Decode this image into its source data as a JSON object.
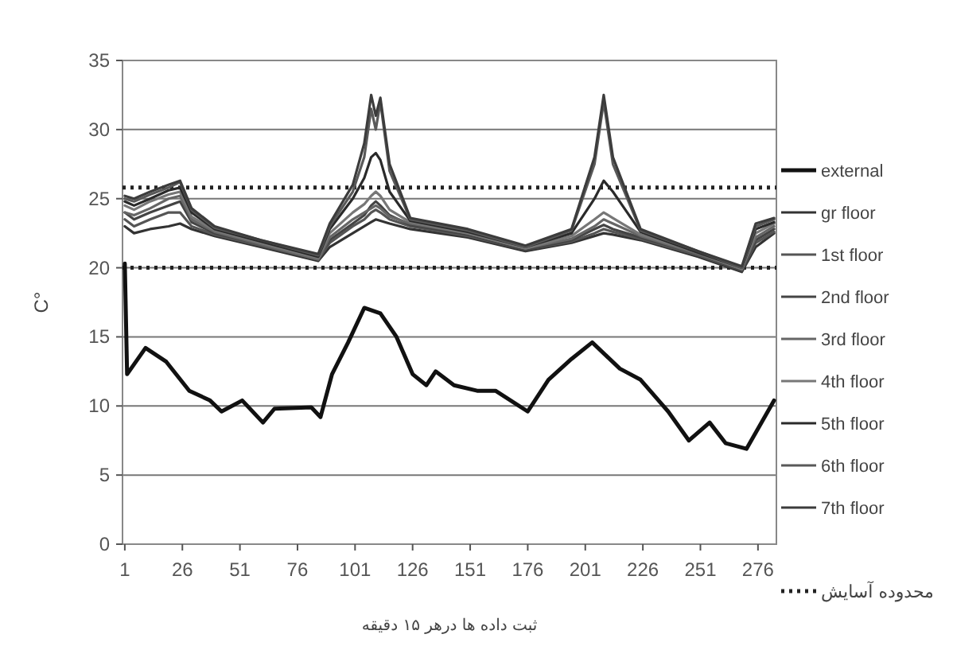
{
  "chart_data": {
    "type": "line",
    "xlabel": "ثبت داده ها درهر ۱۵ دقیقه",
    "ylabel": "C°",
    "xlim": [
      0,
      284
    ],
    "xticks": [
      1,
      26,
      51,
      76,
      101,
      126,
      151,
      176,
      201,
      226,
      251,
      276
    ],
    "ylim": [
      0,
      35
    ],
    "yticks": [
      0,
      5,
      10,
      15,
      20,
      25,
      30,
      35
    ],
    "grid": "y",
    "legend": "right",
    "line_style": "solid",
    "ref_lines": [
      {
        "axis": "y",
        "value": 25.8,
        "label": "محدوده آسایش",
        "line_style": "dotted",
        "color": "#222222"
      },
      {
        "axis": "y",
        "value": 20,
        "label": null,
        "line_style": "dotted",
        "color": "#222222"
      }
    ],
    "series": [
      {
        "name": "external",
        "color": "#111111",
        "x": [
          1,
          2,
          10,
          19,
          29,
          38,
          43,
          52,
          61,
          66,
          82,
          86,
          91,
          98,
          105,
          112,
          119,
          126,
          132,
          136,
          144,
          154,
          162,
          176,
          185,
          195,
          204,
          216,
          225,
          237,
          246,
          255,
          262,
          271,
          283
        ],
        "values": [
          20.3,
          12.3,
          14.2,
          13.2,
          11.1,
          10.4,
          9.6,
          10.4,
          8.8,
          9.8,
          9.9,
          9.2,
          12.3,
          14.6,
          17.1,
          16.7,
          15.0,
          12.3,
          11.5,
          12.5,
          11.5,
          11.1,
          11.1,
          9.6,
          11.9,
          13.4,
          14.6,
          12.7,
          11.9,
          9.6,
          7.5,
          8.8,
          7.3,
          6.9,
          10.4
        ]
      },
      {
        "name": "gr floor",
        "color": "#333333",
        "x": [
          1,
          5,
          12,
          20,
          25,
          30,
          40,
          60,
          85,
          90,
          100,
          105,
          108,
          110,
          112,
          116,
          125,
          150,
          175,
          195,
          205,
          209,
          213,
          225,
          250,
          269,
          275,
          283
        ],
        "values": [
          23,
          22.5,
          22.8,
          23,
          23.2,
          22.8,
          22.3,
          21.5,
          20.5,
          21.5,
          22.5,
          23,
          23.3,
          23.5,
          23.4,
          23.2,
          22.8,
          22.2,
          21.2,
          21.8,
          22.3,
          22.5,
          22.4,
          22,
          20.8,
          19.7,
          21.5,
          22.5
        ]
      },
      {
        "name": "1st floor",
        "color": "#555555",
        "x": [
          1,
          5,
          12,
          20,
          25,
          30,
          40,
          60,
          85,
          90,
          100,
          105,
          108,
          110,
          112,
          116,
          125,
          150,
          175,
          195,
          205,
          209,
          213,
          225,
          250,
          269,
          275,
          283
        ],
        "values": [
          23.5,
          23,
          23.5,
          24,
          24,
          23,
          22.4,
          21.6,
          20.6,
          21.8,
          23,
          23.5,
          24,
          24.2,
          24,
          23.5,
          23,
          22.3,
          21.3,
          21.9,
          22.5,
          22.8,
          22.6,
          22.1,
          20.9,
          19.8,
          21.8,
          22.6
        ]
      },
      {
        "name": "2nd floor",
        "color": "#444444",
        "x": [
          1,
          5,
          12,
          20,
          25,
          30,
          40,
          60,
          85,
          90,
          100,
          105,
          108,
          110,
          112,
          116,
          125,
          150,
          175,
          195,
          205,
          209,
          213,
          225,
          250,
          269,
          275,
          283
        ],
        "values": [
          24,
          23.5,
          24,
          24.5,
          24.8,
          23.3,
          22.5,
          21.7,
          20.7,
          22,
          23.2,
          23.8,
          24.5,
          24.8,
          24.5,
          23.8,
          23.1,
          22.4,
          21.3,
          22,
          22.8,
          23.1,
          22.8,
          22.2,
          21,
          19.8,
          22,
          22.8
        ]
      },
      {
        "name": "3rd floor",
        "color": "#666666",
        "x": [
          1,
          5,
          12,
          20,
          25,
          30,
          40,
          60,
          85,
          90,
          100,
          105,
          108,
          110,
          112,
          116,
          125,
          150,
          175,
          195,
          205,
          209,
          213,
          225,
          250,
          269,
          275,
          283
        ],
        "values": [
          24,
          23.8,
          24.3,
          25,
          25.2,
          23.5,
          22.6,
          21.7,
          20.6,
          22.2,
          23.5,
          24,
          24.3,
          24.5,
          24.3,
          23.7,
          23.2,
          22.5,
          21.4,
          22.1,
          23,
          23.5,
          23.2,
          22.3,
          21,
          19.9,
          22.2,
          23
        ]
      },
      {
        "name": "4th floor",
        "color": "#777777",
        "x": [
          1,
          5,
          12,
          20,
          25,
          30,
          40,
          60,
          85,
          90,
          100,
          105,
          108,
          110,
          112,
          116,
          125,
          150,
          175,
          195,
          205,
          209,
          213,
          225,
          250,
          269,
          275,
          283
        ],
        "values": [
          24.5,
          24.2,
          24.8,
          25.3,
          25.5,
          23.7,
          22.7,
          21.8,
          20.7,
          22.5,
          24,
          24.6,
          25.2,
          25.5,
          25.2,
          24.2,
          23.3,
          22.5,
          21.4,
          22.3,
          23.5,
          24,
          23.6,
          22.4,
          21.1,
          19.9,
          22.5,
          23.2
        ]
      },
      {
        "name": "5th floor",
        "color": "#2a2a2a",
        "x": [
          1,
          5,
          12,
          20,
          25,
          30,
          40,
          60,
          85,
          90,
          100,
          105,
          108,
          110,
          112,
          116,
          125,
          150,
          175,
          195,
          205,
          209,
          213,
          225,
          250,
          269,
          275,
          283
        ],
        "values": [
          24.8,
          24.5,
          25,
          25.6,
          25.8,
          24,
          22.8,
          21.9,
          20.8,
          22.8,
          25,
          26.5,
          28,
          28.3,
          27.8,
          25.5,
          23.4,
          22.6,
          21.5,
          22.5,
          25,
          26.3,
          25.5,
          22.6,
          21.1,
          20,
          22.8,
          23.3
        ]
      },
      {
        "name": "6th floor",
        "color": "#595959",
        "x": [
          1,
          5,
          12,
          20,
          25,
          30,
          40,
          60,
          85,
          90,
          100,
          105,
          108,
          110,
          112,
          116,
          125,
          150,
          175,
          195,
          205,
          209,
          213,
          225,
          250,
          269,
          275,
          283
        ],
        "values": [
          25,
          24.8,
          25.3,
          25.8,
          26.2,
          24.2,
          22.9,
          22,
          20.9,
          23,
          25.5,
          28,
          31.5,
          30,
          32,
          27,
          23.5,
          22.7,
          21.5,
          22.7,
          27.5,
          32,
          27.5,
          22.7,
          21.2,
          20,
          23,
          23.5
        ]
      },
      {
        "name": "7th floor",
        "color": "#3c3c3c",
        "x": [
          1,
          5,
          12,
          20,
          25,
          30,
          40,
          60,
          85,
          90,
          100,
          105,
          108,
          110,
          112,
          116,
          125,
          150,
          175,
          195,
          205,
          209,
          213,
          225,
          250,
          269,
          275,
          283
        ],
        "values": [
          25.2,
          25,
          25.5,
          26,
          26.3,
          24.3,
          23,
          22,
          21,
          23.2,
          26,
          29,
          32.5,
          31,
          32.3,
          27.5,
          23.6,
          22.8,
          21.6,
          22.8,
          28,
          32.5,
          28,
          22.8,
          21.2,
          20.1,
          23.2,
          23.6
        ]
      }
    ]
  }
}
